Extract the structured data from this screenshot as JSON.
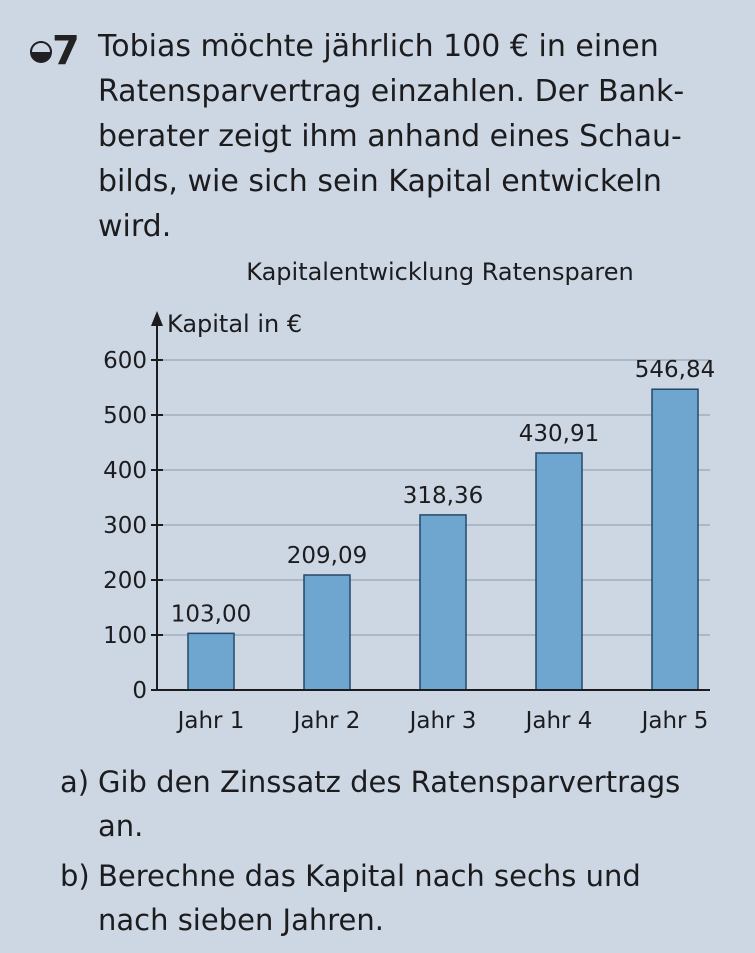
{
  "exercise": {
    "number": "7",
    "intro_lines": [
      "Tobias möchte jährlich 100 € in einen",
      "Ratensparvertrag einzahlen. Der Bank-",
      "berater zeigt ihm anhand eines Schau-",
      "bilds, wie sich sein Kapital entwickeln",
      "wird."
    ],
    "questions": [
      {
        "letter": "a)",
        "lines": [
          "Gib den Zinssatz des Ratensparvertrags",
          "an."
        ]
      },
      {
        "letter": "b)",
        "lines": [
          "Berechne das Kapital nach sechs und",
          "nach sieben Jahren."
        ]
      }
    ]
  },
  "chart_data": {
    "type": "bar",
    "title": "Kapitalentwicklung Ratensparen",
    "ylabel": "Kapital in €",
    "xlabel": "",
    "categories": [
      "Jahr 1",
      "Jahr 2",
      "Jahr 3",
      "Jahr 4",
      "Jahr 5"
    ],
    "values": [
      103.0,
      209.09,
      318.36,
      430.91,
      546.84
    ],
    "value_labels": [
      "103,00",
      "209,09",
      "318,36",
      "430,91",
      "546,84"
    ],
    "ylim": [
      0,
      600
    ],
    "yticks": [
      0,
      100,
      200,
      300,
      400,
      500,
      600
    ],
    "grid": true,
    "colors": {
      "bar": "#6ea6cf",
      "bar_edge": "#24486a",
      "grid": "#9aa6b4",
      "axis": "#1c1c1f"
    }
  }
}
